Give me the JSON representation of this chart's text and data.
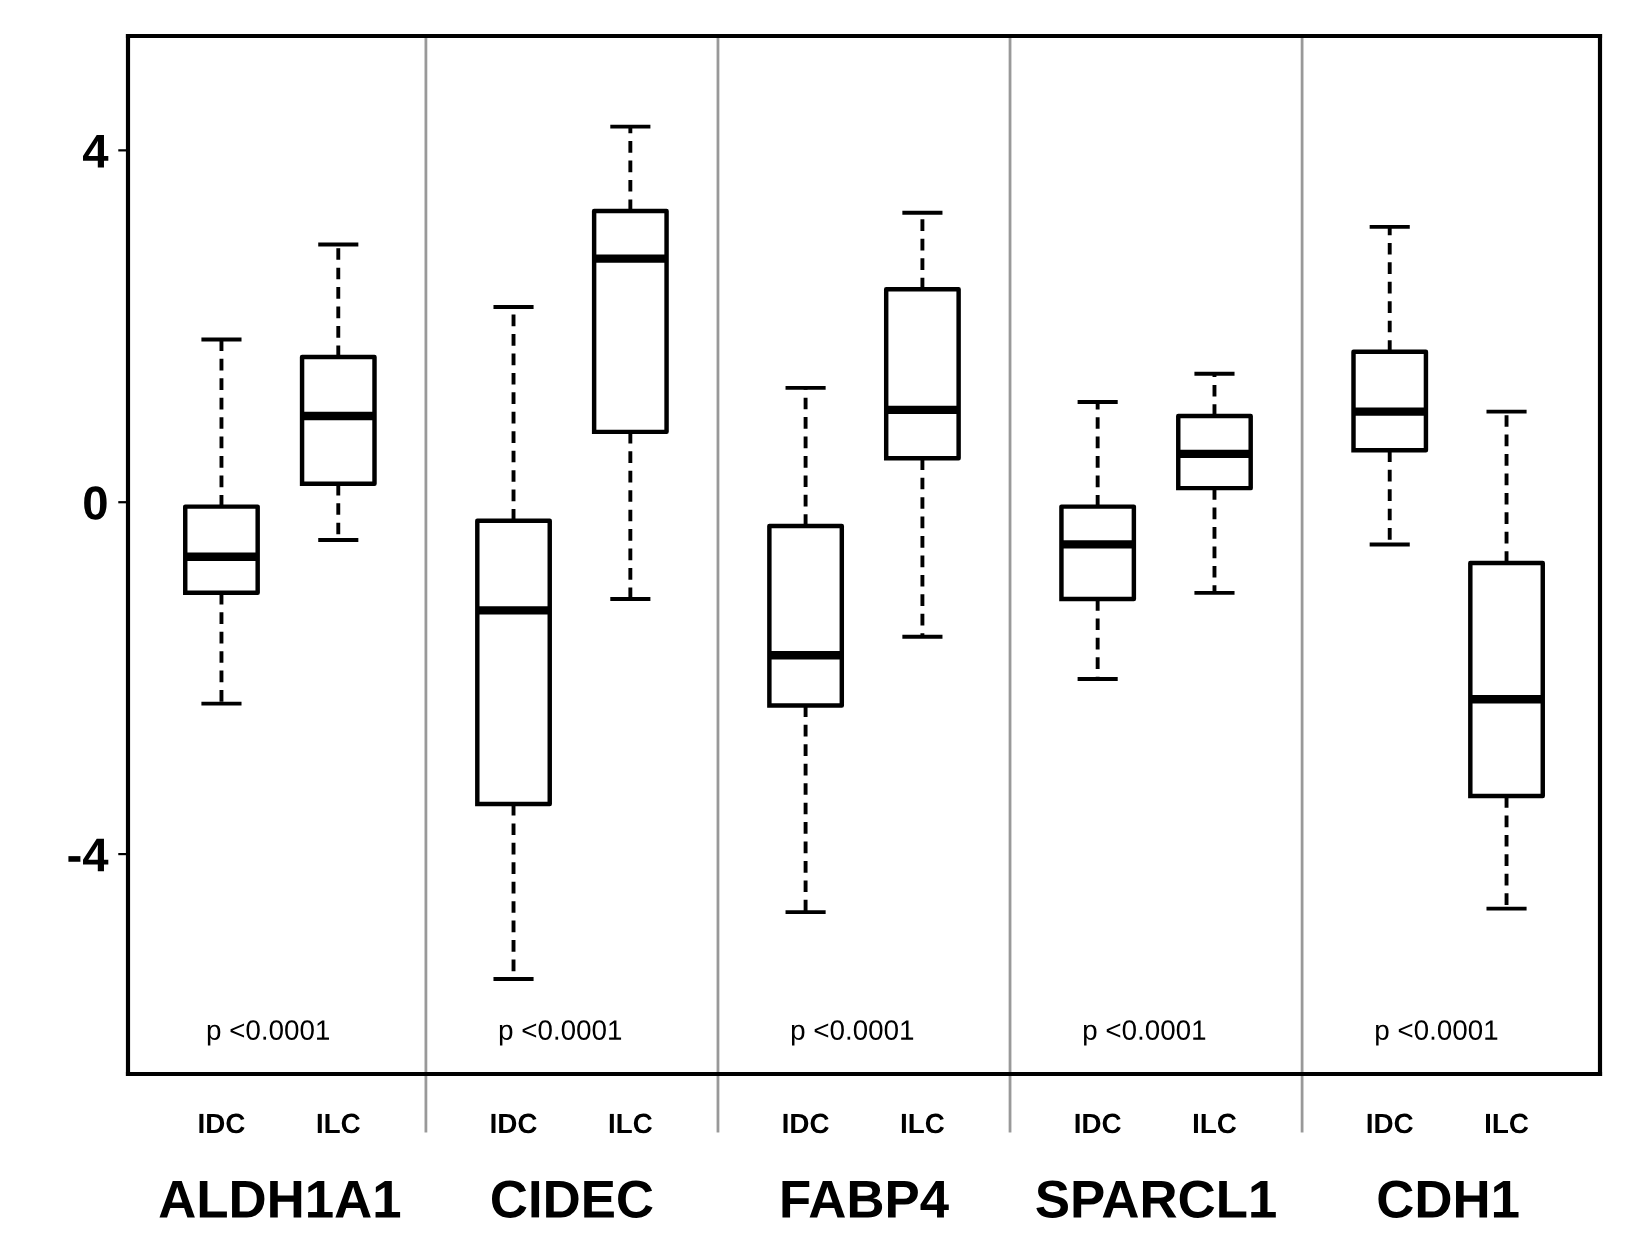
{
  "chart_data": {
    "type": "box",
    "categories": [
      "IDC",
      "ILC",
      "IDC",
      "ILC",
      "IDC",
      "ILC",
      "IDC",
      "ILC",
      "IDC",
      "ILC"
    ],
    "boxes": [
      {
        "low": -2.29,
        "q1": -1.03,
        "median": -0.62,
        "q3": -0.05,
        "high": 1.85
      },
      {
        "low": -0.43,
        "q1": 0.21,
        "median": 0.98,
        "q3": 1.65,
        "high": 2.93
      },
      {
        "low": -5.42,
        "q1": -3.43,
        "median": -1.23,
        "q3": -0.21,
        "high": 2.22
      },
      {
        "low": -1.1,
        "q1": 0.8,
        "median": 2.77,
        "q3": 3.31,
        "high": 4.27
      },
      {
        "low": -4.66,
        "q1": -2.31,
        "median": -1.74,
        "q3": -0.27,
        "high": 1.3
      },
      {
        "low": -1.53,
        "q1": 0.5,
        "median": 1.05,
        "q3": 2.42,
        "high": 3.29
      },
      {
        "low": -2.01,
        "q1": -1.1,
        "median": -0.48,
        "q3": -0.05,
        "high": 1.14
      },
      {
        "low": -1.03,
        "q1": 0.16,
        "median": 0.55,
        "q3": 0.98,
        "high": 1.46
      },
      {
        "low": -0.48,
        "q1": 0.59,
        "median": 1.03,
        "q3": 1.71,
        "high": 3.13
      },
      {
        "low": -4.62,
        "q1": -3.34,
        "median": -2.24,
        "q3": -0.69,
        "high": 1.03
      }
    ],
    "ylim": [
      -6.5,
      5.3
    ],
    "yticks": [
      -4,
      0,
      4
    ],
    "grid": false,
    "annotations": [
      "ALDH1A1",
      "CIDEC",
      "FABP4",
      "SPARCL1",
      "CDH1",
      "p <0.0001",
      "p <0.0001",
      "p <0.0001",
      "p <0.0001",
      "p <0.0001"
    ]
  }
}
